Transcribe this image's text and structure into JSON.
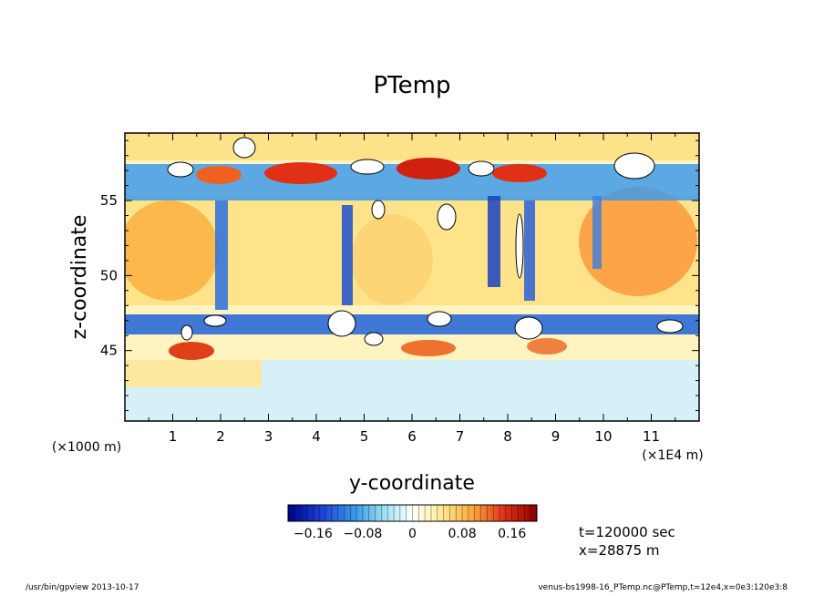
{
  "chart_data": {
    "type": "heatmap",
    "title": "PTemp",
    "xlabel": "y-coordinate",
    "ylabel": "z-coordinate",
    "x_unit_label": "(×1E4 m)",
    "y_unit_label": "(×1000 m)",
    "xlim": [
      0,
      12
    ],
    "ylim": [
      40.3,
      59.5
    ],
    "x_ticks": [
      "1",
      "2",
      "3",
      "4",
      "5",
      "6",
      "7",
      "8",
      "9",
      "10",
      "11"
    ],
    "y_ticks": [
      "45",
      "50",
      "55"
    ],
    "colorbar": {
      "range": [
        -0.2,
        0.2
      ],
      "step": 0.01,
      "tick_labels": [
        "−0.16",
        "−0.08",
        "0",
        "0.08",
        "0.16"
      ],
      "tick_values": [
        -0.16,
        -0.08,
        0,
        0.08,
        0.16
      ]
    },
    "colors": {
      "deep_negative": "#00008b",
      "neutral": "#ffffff",
      "deep_positive": "#8b0000"
    }
  },
  "annotations": {
    "time": "t=120000 sec",
    "position": "x=28875 m"
  },
  "footer": {
    "left": "/usr/bin/gpview   2013-10-17",
    "right": "venus-bs1998-16_PTemp.nc@PTemp,t=12e4,x=0e3:120e3:8"
  }
}
